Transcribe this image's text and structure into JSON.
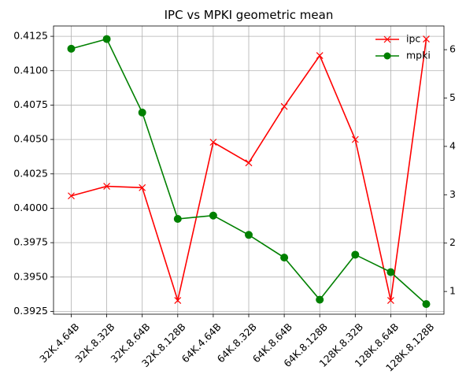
{
  "chart_data": {
    "type": "line",
    "title": "IPC vs MPKI geometric mean",
    "categories": [
      "32K.4.64B",
      "32K.8.32B",
      "32K.8.64B",
      "32K.8.128B",
      "64K.4.64B",
      "64K.8.32B",
      "64K.8.64B",
      "64K.8.128B",
      "128K.8.32B",
      "128K.8.64B",
      "128K.8.128B"
    ],
    "series": [
      {
        "name": "ipc",
        "axis": "left",
        "color": "#ff0000",
        "marker": "x",
        "values": [
          0.4009,
          0.4016,
          0.4015,
          0.3933,
          0.4048,
          0.4033,
          0.4074,
          0.4111,
          0.405,
          0.3933,
          0.4123
        ]
      },
      {
        "name": "mpki",
        "axis": "right",
        "color": "#008000",
        "marker": "o",
        "values": [
          6.02,
          6.22,
          4.7,
          2.5,
          2.57,
          2.17,
          1.7,
          0.83,
          1.76,
          1.4,
          0.74
        ]
      }
    ],
    "ylim_left": [
      0.3923,
      0.41325
    ],
    "yticks_left": [
      "0.3925",
      "0.3950",
      "0.3975",
      "0.4000",
      "0.4025",
      "0.4050",
      "0.4075",
      "0.4100",
      "0.4125"
    ],
    "ylim_right": [
      0.53,
      6.49
    ],
    "yticks_right": [
      "1",
      "2",
      "3",
      "4",
      "5",
      "6"
    ],
    "xlabel": "",
    "ylabel": "",
    "grid": true,
    "legend_position": "top-right"
  }
}
